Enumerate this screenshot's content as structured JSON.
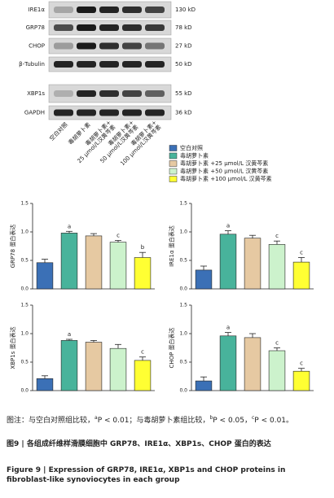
{
  "blot": {
    "rows": [
      {
        "label": "IRE1α",
        "size": "130 kD"
      },
      {
        "label": "GRP78",
        "size": "78 kD"
      },
      {
        "label": "CHOP",
        "size": "27 kD"
      },
      {
        "label": "β-Tubulin",
        "size": "50 kD"
      },
      {
        "label": "XBP1s",
        "size": "55 kD"
      },
      {
        "label": "GAPDH",
        "size": "36 kD"
      }
    ],
    "lanes": [
      [
        "空白对照"
      ],
      [
        "毒胡萝卜素"
      ],
      [
        "毒胡萝卜素+",
        "25 μmol/L汉黄芩素"
      ],
      [
        "毒胡萝卜素+",
        "50 μmol/L汉黄芩素"
      ],
      [
        "毒胡萝卜素+",
        "100 μmol/L汉黄芩素"
      ]
    ]
  },
  "legend": {
    "items": [
      {
        "label": "空白对照",
        "color": "#3b70b6"
      },
      {
        "label": "毒胡萝卜素",
        "color": "#48b39b"
      },
      {
        "label": "毒胡萝卜素 +25 μmol/L 汉黄芩素",
        "color": "#e6c9a2"
      },
      {
        "label": "毒胡萝卜素 +50 μmol/L 汉黄芩素",
        "color": "#ccf2cc"
      },
      {
        "label": "毒胡萝卜素 +100 μmol/L 汉黄芩素",
        "color": "#ffff33"
      }
    ]
  },
  "chart_data": [
    {
      "type": "bar",
      "ylabel": "GRP78 蛋白表达",
      "categories": [
        null,
        null,
        null,
        null,
        null
      ],
      "values": [
        0.46,
        0.98,
        0.93,
        0.82,
        0.55
      ],
      "errors": [
        0.06,
        0.03,
        0.04,
        0.03,
        0.09
      ],
      "letters": [
        null,
        "a",
        null,
        "c",
        "b"
      ],
      "ylim": [
        0,
        1.5
      ],
      "yticks": [
        {
          "value": 0,
          "label": "0.0"
        },
        {
          "value": 0.5,
          "label": "0.5"
        },
        {
          "value": 1,
          "label": "1.0"
        },
        {
          "value": 1.5,
          "label": "1.5"
        }
      ]
    },
    {
      "type": "bar",
      "ylabel": "IRE1α 蛋白表达",
      "categories": [
        null,
        null,
        null,
        null,
        null
      ],
      "values": [
        0.33,
        0.96,
        0.89,
        0.78,
        0.47
      ],
      "errors": [
        0.07,
        0.06,
        0.05,
        0.06,
        0.08
      ],
      "letters": [
        null,
        "a",
        null,
        "c",
        "c"
      ],
      "ylim": [
        0,
        1.5
      ],
      "yticks": [
        {
          "value": 0,
          "label": "0.0"
        },
        {
          "value": 0.5,
          "label": "0.5"
        },
        {
          "value": 1,
          "label": "1.0"
        },
        {
          "value": 1.5,
          "label": "1.5"
        }
      ]
    },
    {
      "type": "bar",
      "ylabel": "XBP1s 蛋白表达",
      "categories": [
        null,
        null,
        null,
        null,
        null
      ],
      "values": [
        0.21,
        0.88,
        0.85,
        0.74,
        0.53
      ],
      "errors": [
        0.05,
        0.02,
        0.03,
        0.07,
        0.06
      ],
      "letters": [
        null,
        "a",
        null,
        null,
        "c"
      ],
      "ylim": [
        0,
        1.5
      ],
      "yticks": [
        {
          "value": 0,
          "label": "0.0"
        },
        {
          "value": 0.5,
          "label": "0.5"
        },
        {
          "value": 1,
          "label": "1.0"
        },
        {
          "value": 1.5,
          "label": "1.5"
        }
      ]
    },
    {
      "type": "bar",
      "ylabel": "CHOP 蛋白表达",
      "categories": [
        null,
        null,
        null,
        null,
        null
      ],
      "values": [
        0.17,
        0.96,
        0.93,
        0.7,
        0.34
      ],
      "errors": [
        0.07,
        0.06,
        0.07,
        0.05,
        0.05
      ],
      "letters": [
        null,
        "a",
        null,
        "c",
        "c"
      ],
      "ylim": [
        0,
        1.5
      ],
      "yticks": [
        {
          "value": 0,
          "label": "0.0"
        },
        {
          "value": 0.5,
          "label": "0.5"
        },
        {
          "value": 1,
          "label": "1.0"
        },
        {
          "value": 1.5,
          "label": "1.5"
        }
      ]
    }
  ],
  "caption": {
    "note": [
      {
        "text": "图注：与空白对照组比较，"
      },
      {
        "text": "a",
        "sup": true
      },
      {
        "text": "P < 0.01；与毒胡萝卜素组比较，"
      },
      {
        "text": "b",
        "sup": true
      },
      {
        "text": "P < 0.05，"
      },
      {
        "text": "c",
        "sup": true
      },
      {
        "text": "P < 0.01。"
      }
    ],
    "title_cn": "图9 | 各组成纤维样滑膜细胞中 GRP78、IRE1α、XBP1s、CHOP 蛋白的表达",
    "title_en": "Figure 9 | Expression of GRP78, IRE1α, XBP1s and CHOP proteins in fibroblast-like synoviocytes in each group"
  }
}
